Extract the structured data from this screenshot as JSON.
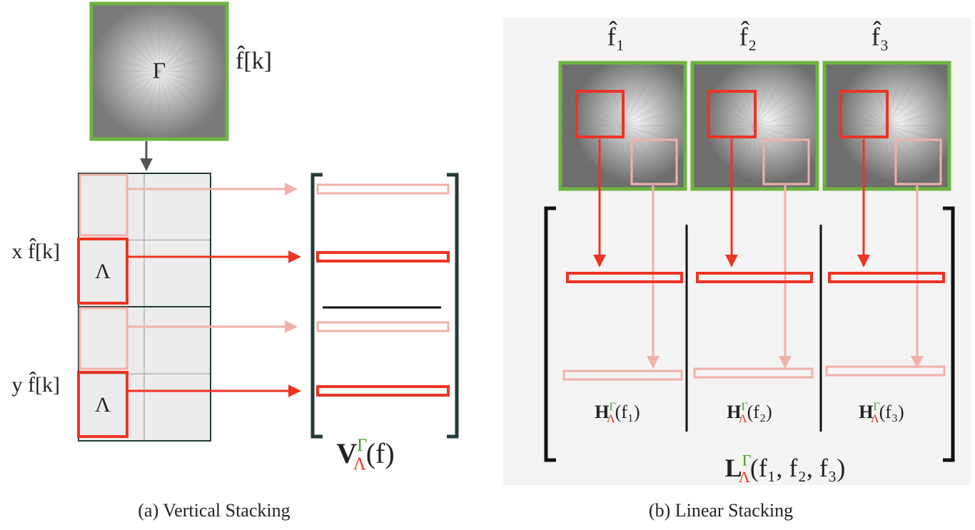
{
  "panel_a": {
    "caption": "(a) Vertical Stacking",
    "input": {
      "symbol": "Γ",
      "label": "f̂[k]"
    },
    "derivatives": [
      {
        "label": "x f̂[k]",
        "region": "Λ"
      },
      {
        "label": "y f̂[k]",
        "region": "Λ"
      }
    ],
    "result": {
      "base": "V",
      "sup": "Γ",
      "sub": "Λ",
      "arg": "(f)"
    }
  },
  "panel_b": {
    "caption": "(b) Linear Stacking",
    "inputs": [
      "f̂₁",
      "f̂₂",
      "f̂₃"
    ],
    "blocks": [
      {
        "base": "H",
        "sup": "Γ",
        "sub": "Λ",
        "arg": "(f₁)"
      },
      {
        "base": "H",
        "sup": "Γ",
        "sub": "Λ",
        "arg": "(f₂)"
      },
      {
        "base": "H",
        "sup": "Γ",
        "sub": "Λ",
        "arg": "(f₃)"
      }
    ],
    "result": {
      "base": "L",
      "sup": "Γ",
      "sub": "Λ",
      "arg": "(f₁, f₂, f₃)"
    }
  }
}
